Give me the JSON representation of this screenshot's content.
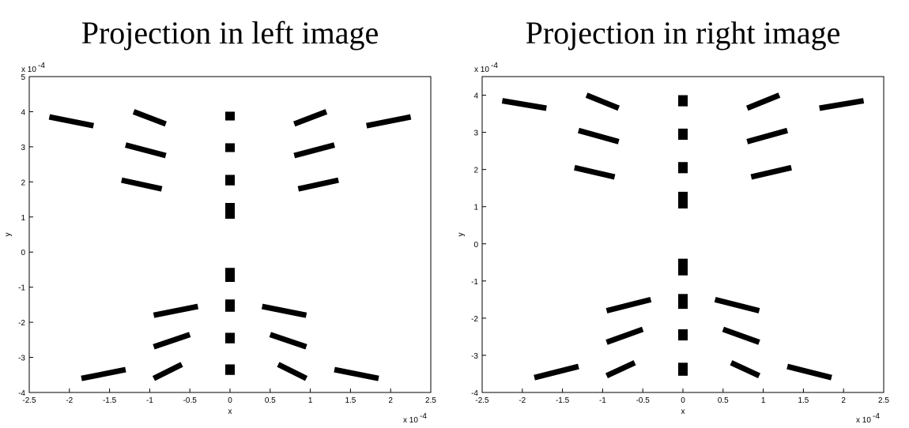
{
  "chart_data": [
    {
      "type": "segments",
      "title": "Projection in left image",
      "xlabel": "x",
      "ylabel": "y",
      "x_multiplier": "x 10",
      "x_exponent": "-4",
      "y_multiplier": "x 10",
      "y_exponent": "-4",
      "xlim": [
        -2.5,
        2.5
      ],
      "ylim": [
        -4,
        5
      ],
      "xticks": [
        -2.5,
        -2,
        -1.5,
        -1,
        -0.5,
        0,
        0.5,
        1,
        1.5,
        2,
        2.5
      ],
      "yticks": [
        -4,
        -3,
        -2,
        -1,
        0,
        1,
        2,
        3,
        4,
        5
      ],
      "color": "#000000",
      "x0": [
        -2.25,
        -1.2,
        0,
        0.8,
        1.7,
        -1.3,
        0,
        0.8,
        -1.35,
        0,
        0.85,
        0,
        0,
        -0.95,
        0,
        0.4,
        -0.95,
        0,
        0.5,
        -1.85,
        -0.95,
        0,
        0.6,
        1.3
      ],
      "y0": [
        3.85,
        4.0,
        4.0,
        3.65,
        3.6,
        3.05,
        3.1,
        2.75,
        2.05,
        2.2,
        1.8,
        1.4,
        -0.45,
        -1.8,
        -1.35,
        -1.55,
        -2.7,
        -2.3,
        -2.35,
        -3.6,
        -3.6,
        -3.2,
        -3.2,
        -3.35
      ],
      "x1": [
        -1.7,
        -0.8,
        0,
        1.2,
        2.25,
        -0.8,
        0,
        1.3,
        -0.85,
        0,
        1.35,
        0,
        0,
        -0.4,
        0,
        0.95,
        -0.5,
        0,
        0.95,
        -1.3,
        -0.6,
        0,
        0.95,
        1.85
      ],
      "y1": [
        3.6,
        3.65,
        3.75,
        4.0,
        3.85,
        2.75,
        2.85,
        3.05,
        1.8,
        1.9,
        2.05,
        0.95,
        -0.85,
        -1.55,
        -1.7,
        -1.8,
        -2.35,
        -2.6,
        -2.7,
        -3.35,
        -3.2,
        -3.5,
        -3.6,
        -3.6
      ]
    },
    {
      "type": "segments",
      "title": "Projection in right image",
      "xlabel": "x",
      "ylabel": "y",
      "x_multiplier": "x 10",
      "x_exponent": "-4",
      "y_multiplier": "x 10",
      "y_exponent": "-4",
      "xlim": [
        -2.5,
        2.5
      ],
      "ylim": [
        -4,
        4.5
      ],
      "xticks": [
        -2.5,
        -2,
        -1.5,
        -1,
        -0.5,
        0,
        0.5,
        1,
        1.5,
        2,
        2.5
      ],
      "yticks": [
        -4,
        -3,
        -2,
        -1,
        0,
        1,
        2,
        3,
        4
      ],
      "color": "#000000",
      "x0": [
        -2.25,
        -1.2,
        0,
        0.8,
        1.7,
        -1.3,
        0,
        0.8,
        -1.35,
        0,
        0.85,
        0,
        0,
        -0.95,
        0,
        0.4,
        -0.95,
        0,
        0.5,
        -1.85,
        -0.95,
        0,
        0.6,
        1.3
      ],
      "y0": [
        3.85,
        4.0,
        4.0,
        3.65,
        3.65,
        3.05,
        3.1,
        2.75,
        2.05,
        2.2,
        1.8,
        1.4,
        -0.4,
        -1.8,
        -1.35,
        -1.5,
        -2.65,
        -2.3,
        -2.3,
        -3.6,
        -3.55,
        -3.2,
        -3.2,
        -3.3
      ],
      "x1": [
        -1.7,
        -0.8,
        0,
        1.2,
        2.25,
        -0.8,
        0,
        1.3,
        -0.85,
        0,
        1.35,
        0,
        0,
        -0.4,
        0,
        0.95,
        -0.5,
        0,
        0.95,
        -1.3,
        -0.6,
        0,
        0.95,
        1.85
      ],
      "y1": [
        3.65,
        3.65,
        3.7,
        4.0,
        3.85,
        2.75,
        2.8,
        3.05,
        1.8,
        1.9,
        2.05,
        0.95,
        -0.85,
        -1.5,
        -1.75,
        -1.8,
        -2.3,
        -2.6,
        -2.65,
        -3.3,
        -3.2,
        -3.55,
        -3.55,
        -3.6
      ]
    }
  ]
}
